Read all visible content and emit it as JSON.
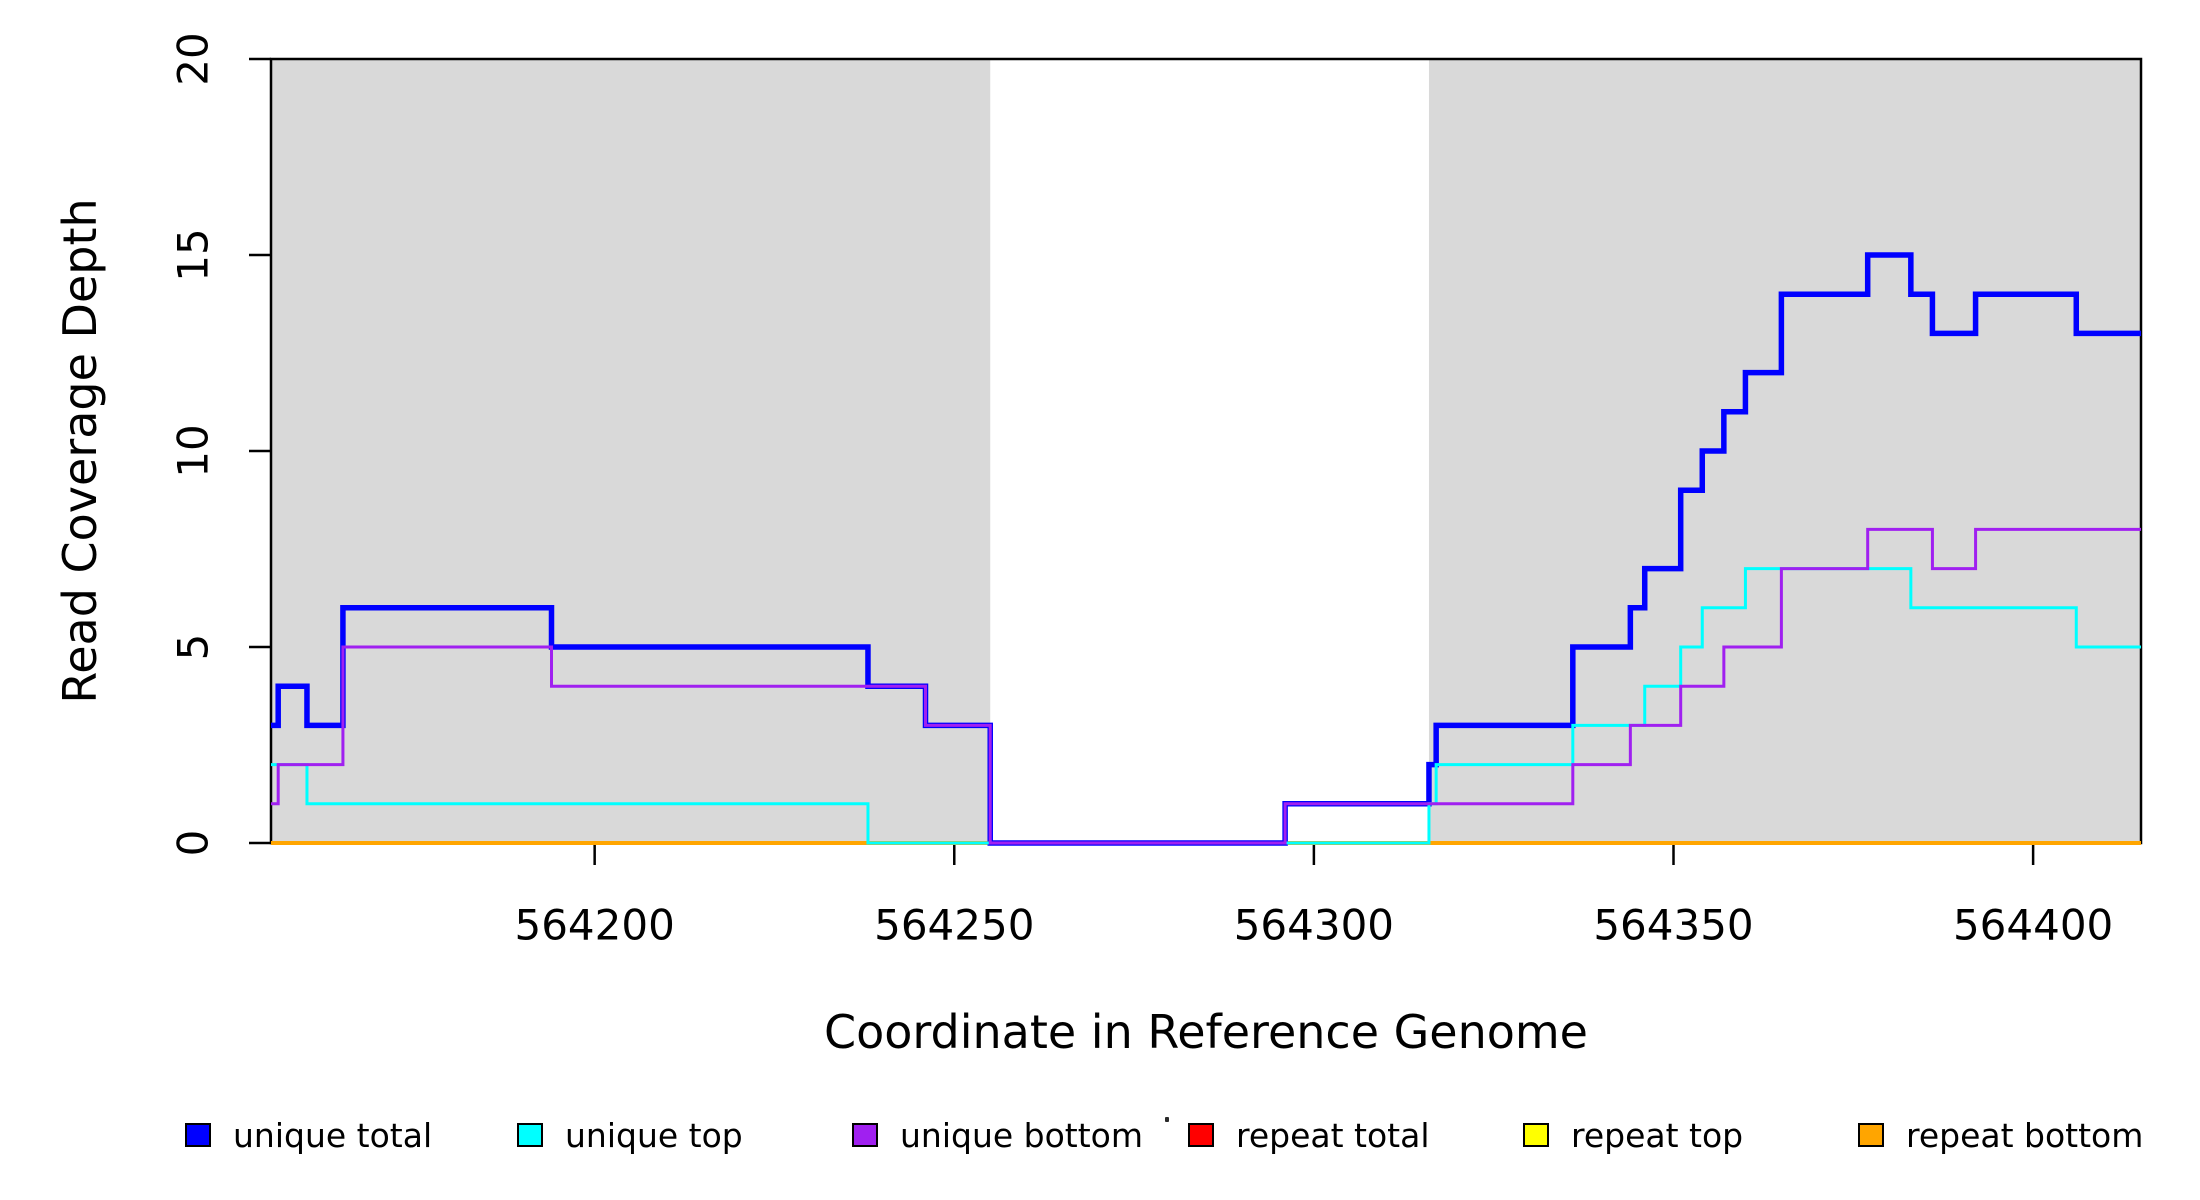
{
  "chart_data": {
    "type": "line",
    "subtype": "step",
    "title": "",
    "xlabel": "Coordinate in Reference Genome",
    "ylabel": "Read Coverage Depth",
    "x_range": [
      564155,
      564415
    ],
    "y_range": [
      0,
      20
    ],
    "grid": false,
    "x_ticks": [
      564200,
      564250,
      564300,
      564350,
      564400
    ],
    "x_tick_labels": [
      "564200",
      "564250",
      "564300",
      "564350",
      "564400"
    ],
    "y_ticks": [
      0,
      5,
      10,
      15,
      20
    ],
    "y_tick_labels": [
      "0",
      "5",
      "10",
      "15",
      "20"
    ],
    "shaded_regions": [
      {
        "x0": 564155,
        "x1": 564255,
        "color": "#D9D9D9"
      },
      {
        "x0": 564316,
        "x1": 564415,
        "color": "#D9D9D9"
      }
    ],
    "series": [
      {
        "name": "repeat total",
        "color": "#FF0000",
        "width": 4,
        "steps": [
          [
            564155,
            0
          ]
        ]
      },
      {
        "name": "repeat top",
        "color": "#FFFF00",
        "width": 4,
        "steps": [
          [
            564155,
            0
          ]
        ]
      },
      {
        "name": "repeat bottom",
        "color": "#FFA500",
        "width": 4,
        "steps": [
          [
            564155,
            0
          ]
        ]
      },
      {
        "name": "unique total",
        "color": "#0000FF",
        "width": 5.5,
        "steps": [
          [
            564155,
            3
          ],
          [
            564156,
            4
          ],
          [
            564160,
            3
          ],
          [
            564165,
            6
          ],
          [
            564194,
            5
          ],
          [
            564238,
            4
          ],
          [
            564246,
            3
          ],
          [
            564255,
            0
          ],
          [
            564296,
            1
          ],
          [
            564316,
            2
          ],
          [
            564317,
            3
          ],
          [
            564336,
            5
          ],
          [
            564344,
            6
          ],
          [
            564346,
            7
          ],
          [
            564351,
            9
          ],
          [
            564354,
            10
          ],
          [
            564357,
            11
          ],
          [
            564360,
            12
          ],
          [
            564365,
            14
          ],
          [
            564377,
            15
          ],
          [
            564383,
            14
          ],
          [
            564386,
            13
          ],
          [
            564392,
            14
          ],
          [
            564406,
            13
          ]
        ]
      },
      {
        "name": "unique top",
        "color": "#00FFFF",
        "width": 3,
        "steps": [
          [
            564155,
            2
          ],
          [
            564160,
            1
          ],
          [
            564238,
            0
          ],
          [
            564316,
            1
          ],
          [
            564317,
            2
          ],
          [
            564336,
            3
          ],
          [
            564346,
            4
          ],
          [
            564351,
            5
          ],
          [
            564354,
            6
          ],
          [
            564360,
            7
          ],
          [
            564383,
            6
          ],
          [
            564406,
            5
          ]
        ]
      },
      {
        "name": "unique bottom",
        "color": "#A020F0",
        "width": 3,
        "steps": [
          [
            564155,
            1
          ],
          [
            564156,
            2
          ],
          [
            564165,
            5
          ],
          [
            564194,
            4
          ],
          [
            564246,
            3
          ],
          [
            564255,
            0
          ],
          [
            564296,
            1
          ],
          [
            564336,
            2
          ],
          [
            564344,
            3
          ],
          [
            564351,
            4
          ],
          [
            564357,
            5
          ],
          [
            564365,
            7
          ],
          [
            564377,
            8
          ],
          [
            564386,
            7
          ],
          [
            564392,
            8
          ]
        ]
      }
    ],
    "legend": [
      {
        "label": "unique total",
        "color": "#0000FF"
      },
      {
        "label": "unique top",
        "color": "#00FFFF"
      },
      {
        "label": "unique bottom",
        "color": "#A020F0"
      },
      {
        "label": "repeat total",
        "color": "#FF0000"
      },
      {
        "label": "repeat top",
        "color": "#FFFF00"
      },
      {
        "label": "repeat bottom",
        "color": "#FFA500"
      }
    ],
    "legend_position": "bottom",
    "axis_color": "#000000"
  }
}
